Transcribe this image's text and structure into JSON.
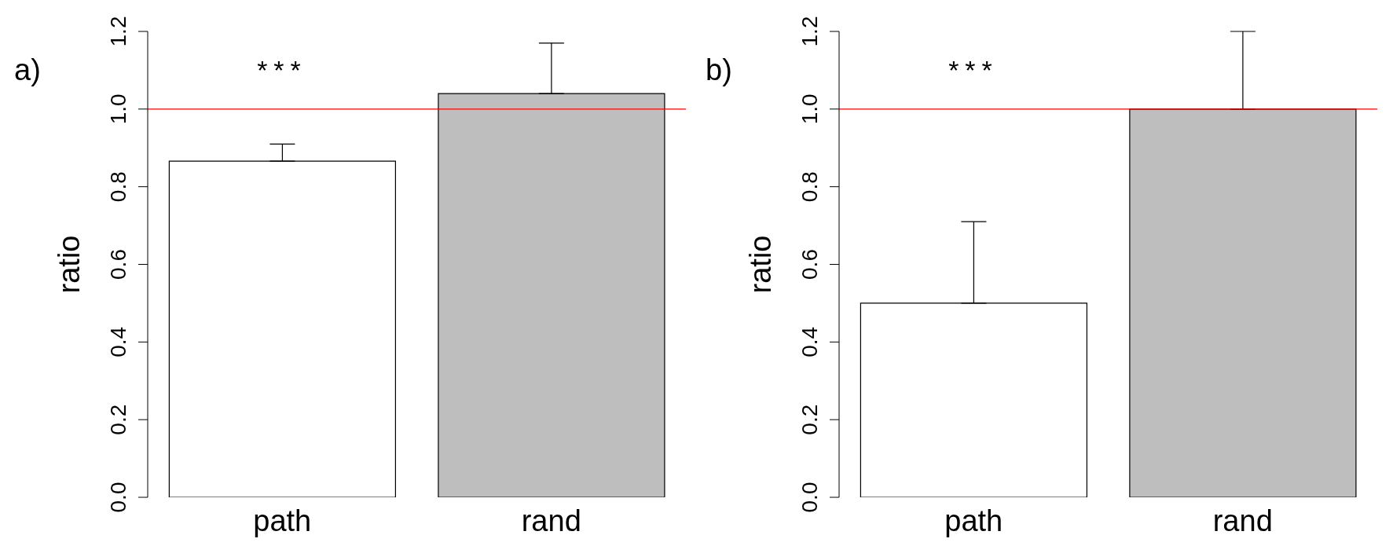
{
  "chart_data": [
    {
      "type": "bar",
      "categories": [
        "path",
        "rand"
      ],
      "colors": [
        "#ffffff",
        "#bebebe"
      ],
      "values": [
        0.866,
        1.04
      ],
      "errors": [
        [
          0.866,
          0.91
        ],
        [
          1.04,
          1.17
        ]
      ],
      "ylabel": "ratio",
      "ylim": [
        0,
        1.2
      ],
      "yticks": [
        {
          "value": 0,
          "label": "0.0"
        },
        {
          "value": 0.2,
          "label": "0.2"
        },
        {
          "value": 0.4,
          "label": "0.4"
        },
        {
          "value": 0.6,
          "label": "0.6"
        },
        {
          "value": 0.8,
          "label": "0.8"
        },
        {
          "value": 1,
          "label": "1.0"
        },
        {
          "value": 1.2,
          "label": "1.2"
        }
      ],
      "grid": false,
      "ref_lines": [
        {
          "axis": "y",
          "value": 1,
          "color": "#ff0000"
        }
      ],
      "annotations": [
        "a)",
        "***"
      ]
    },
    {
      "type": "bar",
      "categories": [
        "path",
        "rand"
      ],
      "colors": [
        "#ffffff",
        "#bebebe"
      ],
      "values": [
        0.5,
        1.0
      ],
      "errors": [
        [
          0.5,
          0.71
        ],
        [
          1.0,
          1.2
        ]
      ],
      "ylabel": "ratio",
      "ylim": [
        0,
        1.2
      ],
      "yticks": [
        {
          "value": 0,
          "label": "0.0"
        },
        {
          "value": 0.2,
          "label": "0.2"
        },
        {
          "value": 0.4,
          "label": "0.4"
        },
        {
          "value": 0.6,
          "label": "0.6"
        },
        {
          "value": 0.8,
          "label": "0.8"
        },
        {
          "value": 1,
          "label": "1.0"
        },
        {
          "value": 1.2,
          "label": "1.2"
        }
      ],
      "grid": false,
      "ref_lines": [
        {
          "axis": "y",
          "value": 1,
          "color": "#ff0000"
        }
      ],
      "annotations": [
        "b)",
        "***"
      ]
    }
  ]
}
